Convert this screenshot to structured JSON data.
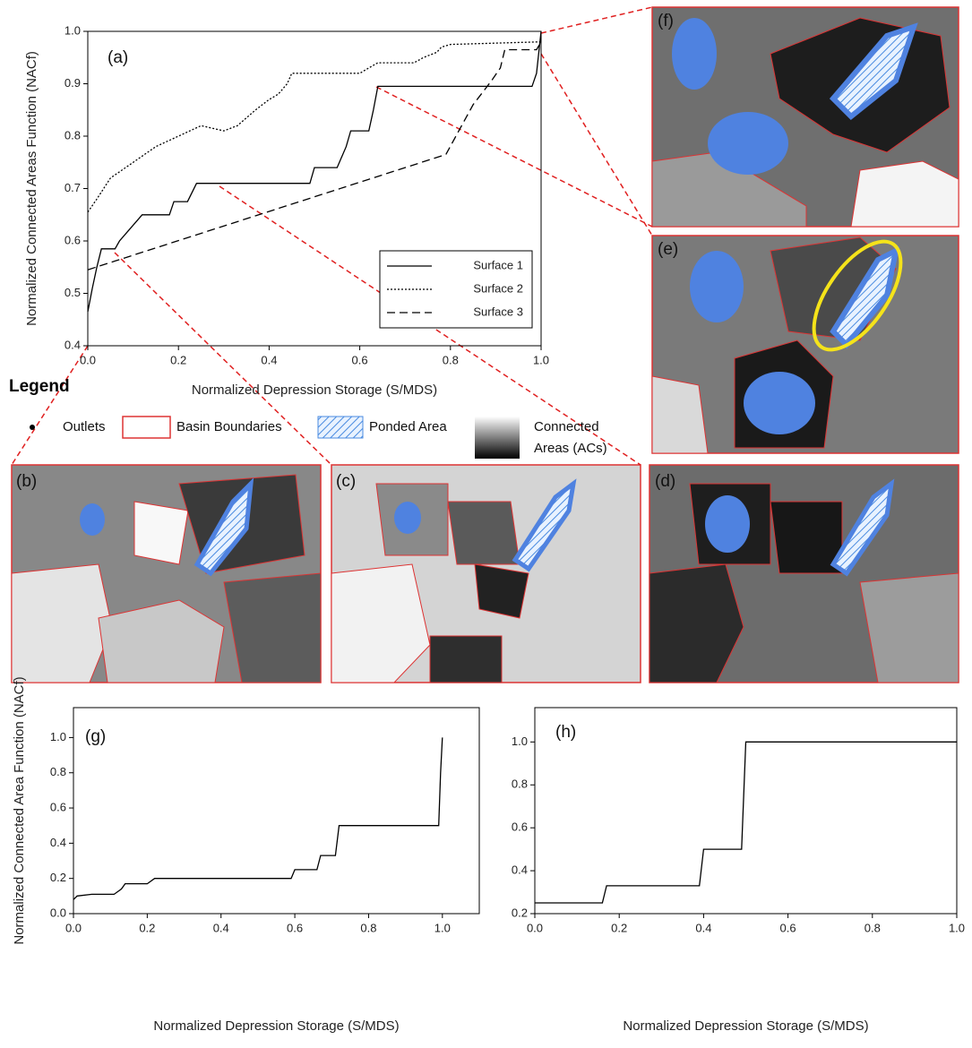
{
  "chart_data": [
    {
      "type": "line",
      "annotation": "(a)",
      "xlabel": "Normalized Depression Storage (S/MDS)",
      "ylabel": "Normalized Connected Areas Function (NACf)",
      "xlim": [
        0,
        1
      ],
      "ylim": [
        0.4,
        1.0
      ],
      "xticks": [
        {
          "value": 0,
          "label": "0.0"
        },
        0.2,
        0.4,
        0.6,
        0.8,
        {
          "value": 1,
          "label": "1.0"
        }
      ],
      "yticks": [
        0.4,
        0.5,
        0.6,
        0.7,
        0.8,
        0.9,
        {
          "value": 1,
          "label": "1.0"
        }
      ],
      "legend": "lower right",
      "color": "#000000",
      "series": [
        {
          "name": "Surface 1",
          "dash": "solid",
          "x": [
            0,
            0.01,
            0.02,
            0.03,
            0.06,
            0.07,
            0.09,
            0.12,
            0.18,
            0.19,
            0.22,
            0.24,
            0.49,
            0.5,
            0.55,
            0.57,
            0.58,
            0.62,
            0.63,
            0.64,
            0.98,
            0.99,
            1.0
          ],
          "values": [
            0.465,
            0.51,
            0.55,
            0.585,
            0.585,
            0.6,
            0.62,
            0.65,
            0.65,
            0.675,
            0.675,
            0.71,
            0.71,
            0.74,
            0.74,
            0.78,
            0.81,
            0.81,
            0.85,
            0.895,
            0.895,
            0.92,
            1.0
          ]
        },
        {
          "name": "Surface 2",
          "dash": "dotted",
          "x": [
            0,
            0.02,
            0.05,
            0.1,
            0.15,
            0.2,
            0.25,
            0.3,
            0.33,
            0.37,
            0.4,
            0.42,
            0.44,
            0.45,
            0.6,
            0.62,
            0.64,
            0.72,
            0.74,
            0.77,
            0.78,
            0.8,
            1.0
          ],
          "values": [
            0.655,
            0.68,
            0.72,
            0.75,
            0.78,
            0.8,
            0.82,
            0.81,
            0.82,
            0.85,
            0.87,
            0.88,
            0.9,
            0.92,
            0.92,
            0.93,
            0.94,
            0.94,
            0.95,
            0.96,
            0.97,
            0.975,
            0.98
          ]
        },
        {
          "name": "Surface 3",
          "dash": "dashed",
          "x": [
            0,
            0.79,
            0.85,
            0.89,
            0.91,
            0.92,
            0.99,
            1.0
          ],
          "values": [
            0.545,
            0.765,
            0.86,
            0.905,
            0.93,
            0.965,
            0.965,
            0.98
          ]
        }
      ]
    },
    {
      "type": "line",
      "annotation": "(g)",
      "xlabel": "Normalized Depression Storage (S/MDS)",
      "ylabel": "Normalized Connected Area Function (NACf)",
      "xlim": [
        0,
        1.1
      ],
      "ylim": [
        0,
        1.17
      ],
      "xticks": [
        {
          "value": 0,
          "label": "0.0"
        },
        0.2,
        0.4,
        0.6,
        0.8,
        {
          "value": 1,
          "label": "1.0"
        }
      ],
      "yticks": [
        {
          "value": 0,
          "label": "0.0"
        },
        0.2,
        0.4,
        0.6,
        0.8,
        {
          "value": 1,
          "label": "1.0"
        }
      ],
      "color": "#000000",
      "series": [
        {
          "dash": "solid",
          "x": [
            0,
            0.01,
            0.05,
            0.11,
            0.13,
            0.14,
            0.2,
            0.22,
            0.59,
            0.6,
            0.66,
            0.67,
            0.71,
            0.72,
            0.99,
            0.995,
            1.0
          ],
          "values": [
            0.08,
            0.1,
            0.11,
            0.11,
            0.14,
            0.17,
            0.17,
            0.2,
            0.2,
            0.25,
            0.25,
            0.33,
            0.33,
            0.5,
            0.5,
            0.8,
            1.0
          ]
        }
      ]
    },
    {
      "type": "line",
      "annotation": "(h)",
      "xlabel": "Normalized Depression Storage (S/MDS)",
      "xlim": [
        0,
        1.0
      ],
      "ylim": [
        0.2,
        1.16
      ],
      "xticks": [
        {
          "value": 0,
          "label": "0.0"
        },
        0.2,
        0.4,
        0.6,
        0.8,
        {
          "value": 1,
          "label": "1.0"
        }
      ],
      "yticks": [
        0.2,
        0.4,
        0.6,
        0.8,
        {
          "value": 1,
          "label": "1.0"
        }
      ],
      "color": "#000000",
      "series": [
        {
          "dash": "solid",
          "x": [
            0,
            0.16,
            0.17,
            0.39,
            0.4,
            0.49,
            0.5,
            1.0
          ],
          "values": [
            0.25,
            0.25,
            0.33,
            0.33,
            0.5,
            0.5,
            1.0,
            1.0
          ]
        }
      ]
    }
  ],
  "legend": {
    "title": "Legend",
    "outlets": "Outlets",
    "basins": "Basin Boundaries",
    "ponded": "Ponded Area",
    "connected": [
      "Connected",
      "Areas (ACs)"
    ]
  },
  "map_panels": [
    "(f)",
    "(e)",
    "(b)",
    "(c)",
    "(d)"
  ]
}
